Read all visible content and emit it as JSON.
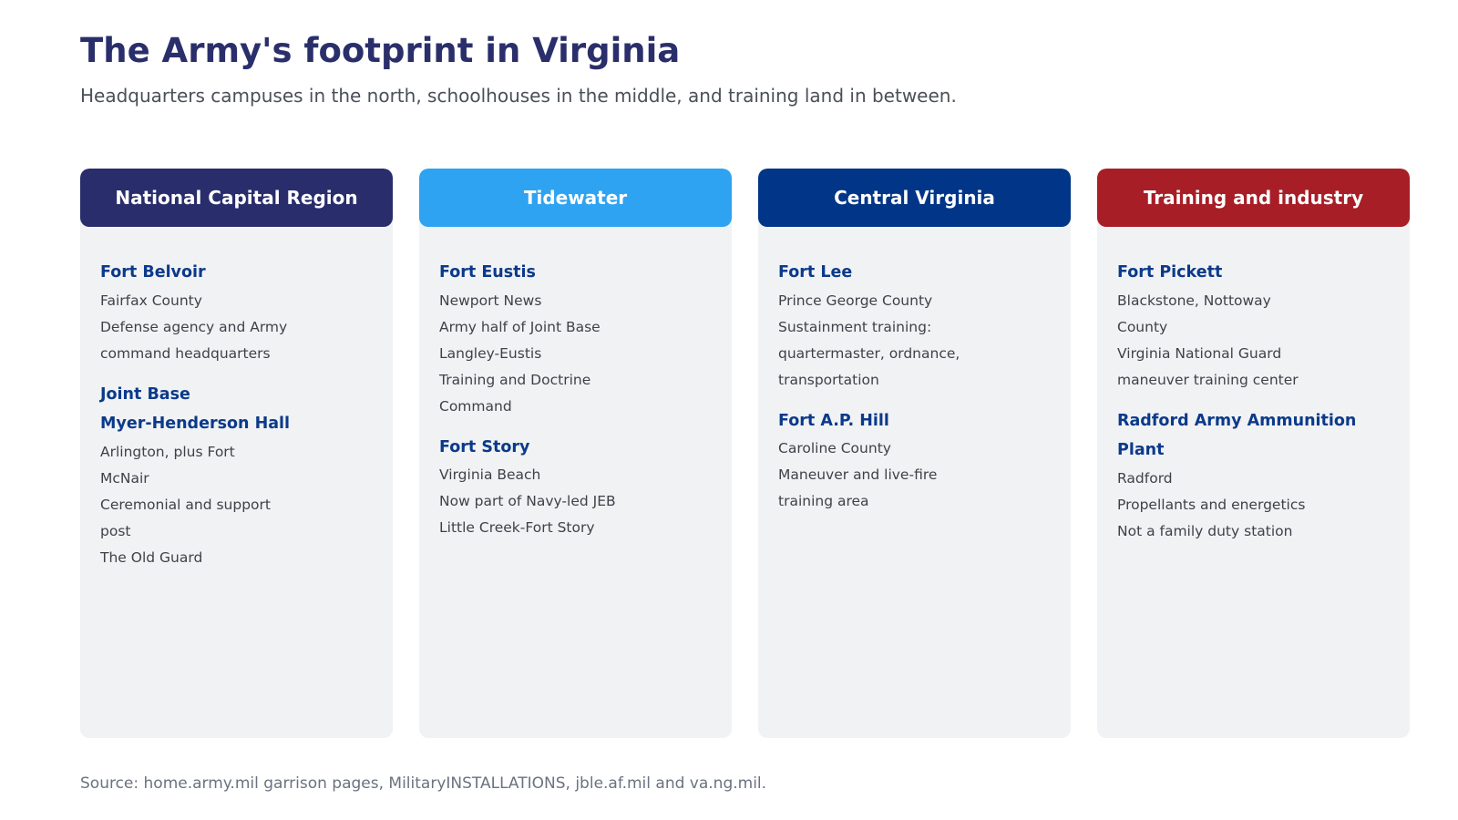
{
  "title": "The Army's footprint in Virginia",
  "subtitle": "Headquarters campuses in the north, schoolhouses in the middle, and training land in between.",
  "source": "Source: home.army.mil garrison pages, MilitaryINSTALLATIONS, jble.af.mil and va.ng.mil.",
  "colors": {
    "title": "#2a2f6b",
    "base_name": "#0b3a8a",
    "card_background": "#f1f2f4"
  },
  "columns": [
    {
      "id": "national-capital-region",
      "header": "National Capital Region",
      "color": "#292d6b",
      "bases": [
        {
          "name_lines": [
            "Fort Belvoir"
          ],
          "lines": [
            "Fairfax County",
            "Defense agency and Army",
            "command headquarters"
          ]
        },
        {
          "name_lines": [
            "Joint Base",
            "Myer-Henderson Hall"
          ],
          "lines": [
            "Arlington, plus Fort",
            "McNair",
            "Ceremonial and support",
            "post",
            "The Old Guard"
          ]
        }
      ]
    },
    {
      "id": "tidewater",
      "header": "Tidewater",
      "color": "#2ea3f2",
      "bases": [
        {
          "name_lines": [
            "Fort Eustis"
          ],
          "lines": [
            "Newport News",
            "Army half of Joint Base",
            "Langley-Eustis",
            "Training and Doctrine",
            "Command"
          ]
        },
        {
          "name_lines": [
            "Fort Story"
          ],
          "lines": [
            "Virginia Beach",
            "Now part of Navy-led JEB",
            "Little Creek-Fort Story"
          ]
        }
      ]
    },
    {
      "id": "central-virginia",
      "header": "Central Virginia",
      "color": "#003587",
      "bases": [
        {
          "name_lines": [
            "Fort Lee"
          ],
          "lines": [
            "Prince George County",
            "Sustainment training:",
            "quartermaster, ordnance,",
            "transportation"
          ]
        },
        {
          "name_lines": [
            "Fort A.P. Hill"
          ],
          "lines": [
            "Caroline County",
            "Maneuver and live-fire",
            "training area"
          ]
        }
      ]
    },
    {
      "id": "training-and-industry",
      "header": "Training and industry",
      "color": "#a81e26",
      "bases": [
        {
          "name_lines": [
            "Fort Pickett"
          ],
          "lines": [
            "Blackstone, Nottoway",
            "County",
            "Virginia National Guard",
            "maneuver training center"
          ]
        },
        {
          "name_lines": [
            "Radford Army Ammunition",
            "Plant"
          ],
          "lines": [
            "Radford",
            "Propellants and energetics",
            "Not a family duty station"
          ]
        }
      ]
    }
  ]
}
